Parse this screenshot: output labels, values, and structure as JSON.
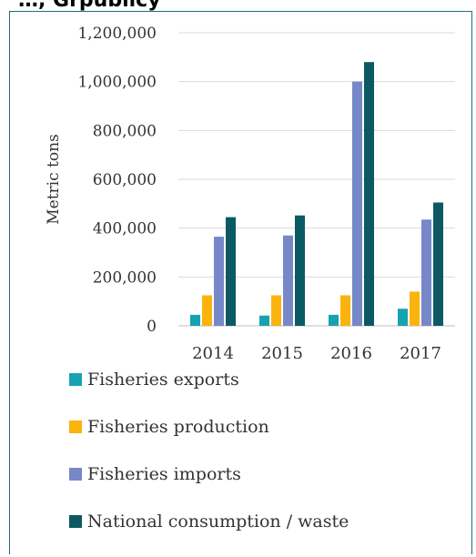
{
  "title_fragment": "…, Grpublicy",
  "chart_data": {
    "type": "bar",
    "categories": [
      "2014",
      "2015",
      "2016",
      "2017"
    ],
    "ylabel": "Metric tons",
    "ylim": [
      0,
      1200000
    ],
    "yticks": [
      0,
      200000,
      400000,
      600000,
      800000,
      1000000,
      1200000
    ],
    "ytick_labels": [
      "0",
      "200,000",
      "400,000",
      "600,000",
      "800,000",
      "1,000,000",
      "1,200,000"
    ],
    "grid": true,
    "legend_position": "bottom",
    "series": [
      {
        "name": "Fisheries exports",
        "color": "#17a2b2",
        "values": [
          45000,
          42000,
          45000,
          70000
        ]
      },
      {
        "name": "Fisheries production",
        "color": "#fbb40e",
        "values": [
          125000,
          125000,
          125000,
          140000
        ]
      },
      {
        "name": "Fisheries imports",
        "color": "#7688c8",
        "values": [
          365000,
          370000,
          1000000,
          435000
        ]
      },
      {
        "name": "National consumption / waste",
        "color": "#0b5a63",
        "values": [
          445000,
          452000,
          1080000,
          505000
        ]
      }
    ]
  }
}
